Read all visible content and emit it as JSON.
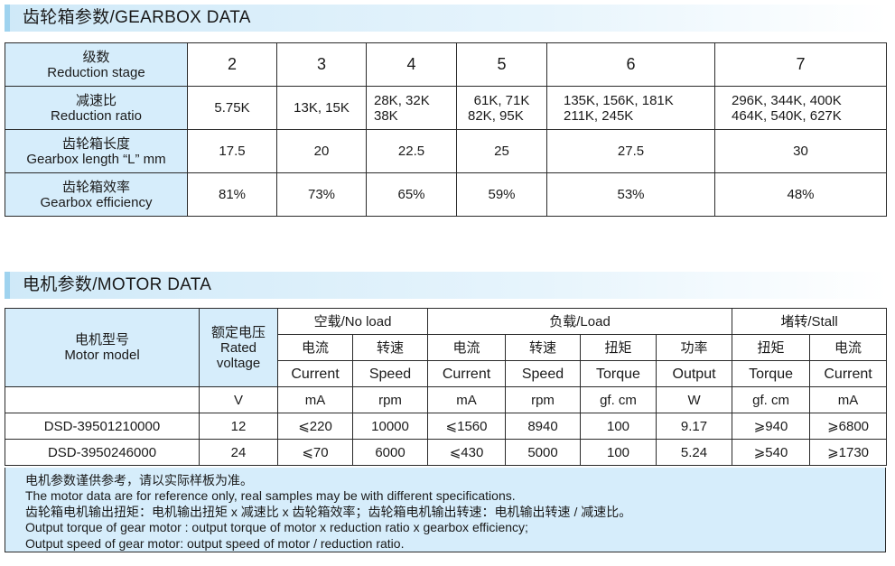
{
  "gearbox": {
    "title": "齿轮箱参数/GEARBOX DATA",
    "rows": [
      {
        "label_cn": "级数",
        "label_en": "Reduction stage",
        "cells": [
          "2",
          "3",
          "4",
          "5",
          "6",
          "7"
        ]
      },
      {
        "label_cn": "减速比",
        "label_en": "Reduction ratio",
        "cells": [
          [
            "5.75K"
          ],
          [
            "13K, 15K"
          ],
          [
            "28K, 32K",
            "38K"
          ],
          [
            "61K, 71K",
            "82K, 95K"
          ],
          [
            "135K, 156K, 181K",
            "211K, 245K"
          ],
          [
            "296K, 344K, 400K",
            "464K, 540K, 627K"
          ]
        ]
      },
      {
        "label_cn": "齿轮箱长度",
        "label_en": "Gearbox length “L” mm",
        "cells": [
          "17.5",
          "20",
          "22.5",
          "25",
          "27.5",
          "30"
        ]
      },
      {
        "label_cn": "齿轮箱效率",
        "label_en": "Gearbox efficiency",
        "cells": [
          "81%",
          "73%",
          "65%",
          "59%",
          "53%",
          "48%"
        ]
      }
    ]
  },
  "motor": {
    "title": "电机参数/MOTOR DATA",
    "model_cn": "电机型号",
    "model_en": "Motor model",
    "voltage_cn": "额定电压",
    "voltage_en1": "Rated",
    "voltage_en2": "voltage",
    "groups": [
      "空载/No load",
      "负载/Load",
      "堵转/Stall"
    ],
    "cols_cn": [
      "电流",
      "转速",
      "电流",
      "转速",
      "扭矩",
      "功率",
      "扭矩",
      "电流"
    ],
    "cols_en": [
      "Current",
      "Speed",
      "Current",
      "Speed",
      "Torque",
      "Output",
      "Torque",
      "Current"
    ],
    "units": [
      "V",
      "mA",
      "rpm",
      "mA",
      "rpm",
      "gf. cm",
      "W",
      "gf. cm",
      "mA"
    ],
    "rows": [
      [
        "DSD-39501210000",
        "12",
        "⩽220",
        "10000",
        "⩽1560",
        "8940",
        "100",
        "9.17",
        "⩾940",
        "⩾6800"
      ],
      [
        "DSD-3950246000",
        "24",
        "⩽70",
        "6000",
        "⩽430",
        "5000",
        "100",
        "5.24",
        "⩾540",
        "⩾1730"
      ]
    ]
  },
  "notes": [
    "电机参数谨供参考，请以实际样板为准。",
    "The  motor  data  are  for reference only, real samples may be with different specifications.",
    "齿轮箱电机输出扭矩：电机输出扭矩 x 减速比 x 齿轮箱效率；齿轮箱电机输出转速：电机输出转速 / 减速比。",
    "Output torque of gear motor : output torque of motor x reduction ratio x gearbox efficiency;",
    "Output speed of gear motor: output speed of motor / reduction ratio."
  ]
}
